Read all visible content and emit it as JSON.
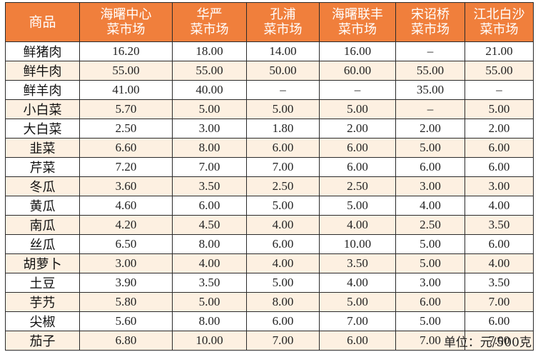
{
  "table": {
    "headers": [
      [
        "商品"
      ],
      [
        "海曙中心",
        "菜市场"
      ],
      [
        "华严",
        "菜市场"
      ],
      [
        "孔浦",
        "菜市场"
      ],
      [
        "海曙联丰",
        "菜市场"
      ],
      [
        "宋诏桥",
        "菜市场"
      ],
      [
        "江北白沙",
        "菜市场"
      ]
    ],
    "rows": [
      [
        "鲜猪肉",
        "16.20",
        "18.00",
        "14.00",
        "16.00",
        "–",
        "21.00"
      ],
      [
        "鲜牛肉",
        "55.00",
        "55.00",
        "50.00",
        "60.00",
        "55.00",
        "55.00"
      ],
      [
        "鲜羊肉",
        "41.00",
        "40.00",
        "–",
        "–",
        "35.00",
        "–"
      ],
      [
        "小白菜",
        "5.70",
        "5.00",
        "5.00",
        "5.00",
        "–",
        "5.00"
      ],
      [
        "大白菜",
        "2.50",
        "3.00",
        "1.80",
        "2.00",
        "2.00",
        "2.00"
      ],
      [
        "韭菜",
        "6.60",
        "8.00",
        "6.00",
        "6.00",
        "5.00",
        "6.00"
      ],
      [
        "芹菜",
        "7.20",
        "7.00",
        "7.00",
        "6.00",
        "6.00",
        "6.00"
      ],
      [
        "冬瓜",
        "3.60",
        "3.50",
        "2.50",
        "2.50",
        "3.00",
        "3.00"
      ],
      [
        "黄瓜",
        "4.60",
        "6.00",
        "5.00",
        "5.00",
        "4.00",
        "4.00"
      ],
      [
        "南瓜",
        "4.20",
        "4.50",
        "4.00",
        "4.00",
        "2.50",
        "3.50"
      ],
      [
        "丝瓜",
        "6.50",
        "8.00",
        "6.00",
        "10.00",
        "5.00",
        "6.00"
      ],
      [
        "胡萝卜",
        "3.00",
        "4.00",
        "4.00",
        "3.50",
        "5.00",
        "4.00"
      ],
      [
        "土豆",
        "3.90",
        "3.50",
        "5.00",
        "4.00",
        "3.00",
        "3.50"
      ],
      [
        "芋艿",
        "5.80",
        "5.00",
        "8.00",
        "5.00",
        "6.00",
        "7.00"
      ],
      [
        "尖椒",
        "5.60",
        "8.00",
        "6.00",
        "7.00",
        "5.00",
        "6.00"
      ],
      [
        "茄子",
        "6.80",
        "10.00",
        "7.00",
        "6.00",
        "7.00",
        "7.00"
      ]
    ]
  },
  "unit_note": "单位：元/500克",
  "colors": {
    "header_bg": "#f07f3c",
    "header_text": "#ffffff",
    "stripe_bg": "#fdf0e1",
    "border": "#2a2a2a"
  }
}
